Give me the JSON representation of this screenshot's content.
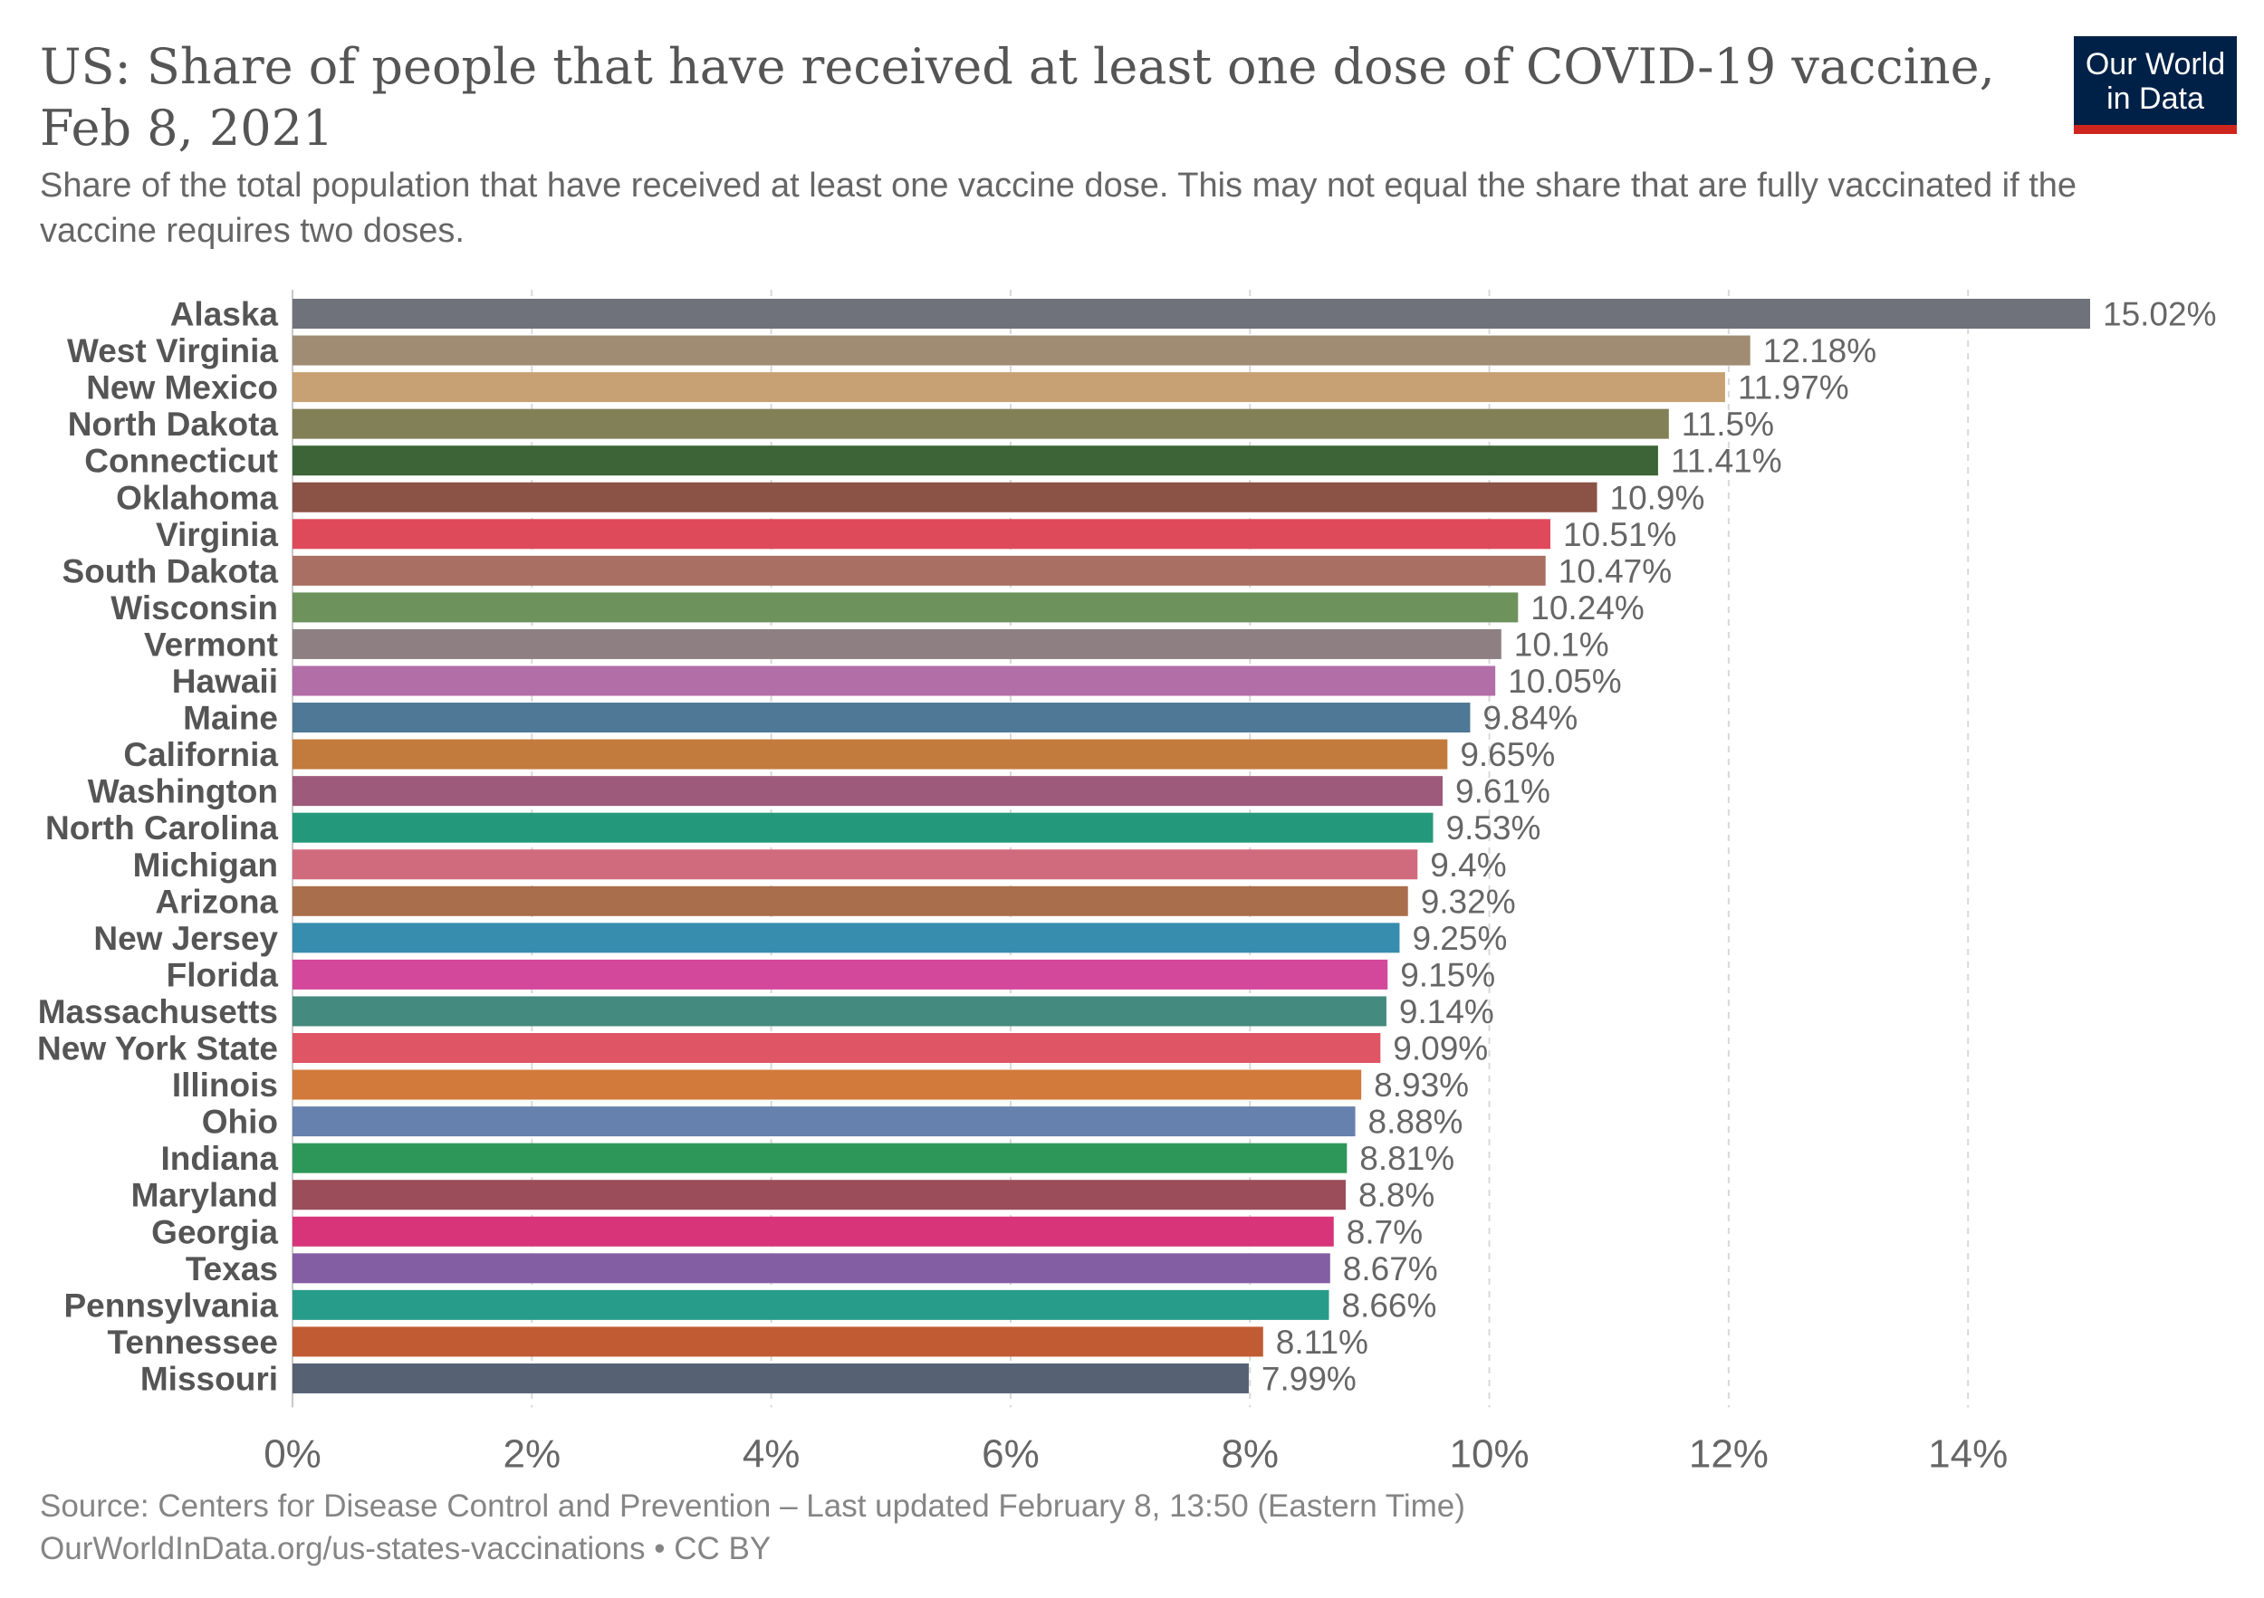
{
  "header": {
    "title": "US: Share of people that have received at least one dose of COVID-19 vaccine, Feb 8, 2021",
    "subtitle": "Share of the total population that have received at least one vaccine dose. This may not equal the share that are fully vaccinated if the vaccine requires two doses."
  },
  "logo": {
    "line1": "Our World",
    "line2": "in Data",
    "bg_color": "#002147",
    "accent_color": "#ce261e"
  },
  "footer": {
    "source": "Source: Centers for Disease Control and Prevention – Last updated February 8, 13:50 (Eastern Time)",
    "url": "OurWorldInData.org/us-states-vaccinations • CC BY"
  },
  "chart_data": {
    "type": "bar",
    "orientation": "horizontal",
    "title": "US: Share of people that have received at least one dose of COVID-19 vaccine, Feb 8, 2021",
    "xlim": [
      0,
      15.02
    ],
    "x_ticks": [
      0,
      2,
      4,
      6,
      8,
      10,
      12,
      14
    ],
    "x_tick_labels": [
      "0%",
      "2%",
      "4%",
      "6%",
      "8%",
      "10%",
      "12%",
      "14%"
    ],
    "grid": "vertical dashed",
    "categories": [
      "Alaska",
      "West Virginia",
      "New Mexico",
      "North Dakota",
      "Connecticut",
      "Oklahoma",
      "Virginia",
      "South Dakota",
      "Wisconsin",
      "Vermont",
      "Hawaii",
      "Maine",
      "California",
      "Washington",
      "North Carolina",
      "Michigan",
      "Arizona",
      "New Jersey",
      "Florida",
      "Massachusetts",
      "New York State",
      "Illinois",
      "Ohio",
      "Indiana",
      "Maryland",
      "Georgia",
      "Texas",
      "Pennsylvania",
      "Tennessee",
      "Missouri"
    ],
    "values": [
      15.02,
      12.18,
      11.97,
      11.5,
      11.41,
      10.9,
      10.51,
      10.47,
      10.24,
      10.1,
      10.05,
      9.84,
      9.65,
      9.61,
      9.53,
      9.4,
      9.32,
      9.25,
      9.15,
      9.14,
      9.09,
      8.93,
      8.88,
      8.81,
      8.8,
      8.7,
      8.67,
      8.66,
      8.11,
      7.99
    ],
    "value_labels": [
      "15.02%",
      "12.18%",
      "11.97%",
      "11.5%",
      "11.41%",
      "10.9%",
      "10.51%",
      "10.47%",
      "10.24%",
      "10.1%",
      "10.05%",
      "9.84%",
      "9.65%",
      "9.61%",
      "9.53%",
      "9.4%",
      "9.32%",
      "9.25%",
      "9.15%",
      "9.14%",
      "9.09%",
      "8.93%",
      "8.88%",
      "8.81%",
      "8.8%",
      "8.7%",
      "8.67%",
      "8.66%",
      "8.11%",
      "7.99%"
    ],
    "colors": [
      "#6f727a",
      "#a08b73",
      "#c7a173",
      "#828056",
      "#3c6436",
      "#8b5246",
      "#df4a5a",
      "#a86f62",
      "#6e925c",
      "#8e8082",
      "#b26ea7",
      "#4e7896",
      "#c27b3c",
      "#9d5a7b",
      "#24987a",
      "#d06b7e",
      "#a96e4b",
      "#378dae",
      "#d4489c",
      "#448a7e",
      "#df5565",
      "#d17a3b",
      "#6781ae",
      "#2d9759",
      "#9b4e5a",
      "#d73479",
      "#845ea3",
      "#279c8a",
      "#c15b33",
      "#566174"
    ]
  }
}
